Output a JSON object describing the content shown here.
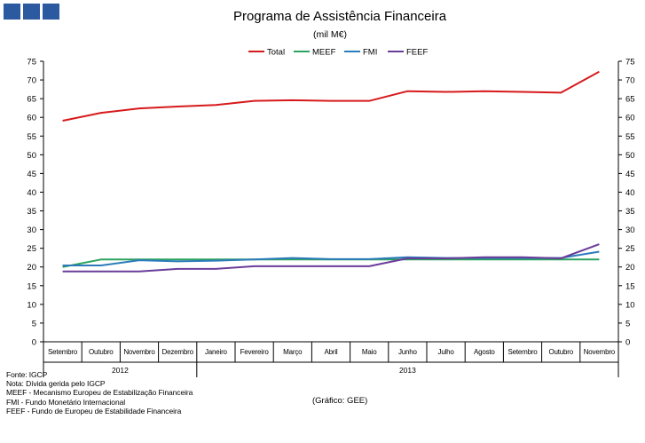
{
  "header": {
    "logo_icon": "three-blue-squares-logo-icon"
  },
  "chart_data": {
    "type": "line",
    "title": "Programa de Assistência Financeira",
    "subtitle": "(mil M€)",
    "categories": [
      "Setembro",
      "Outubro",
      "Novembro",
      "Dezembro",
      "Janeiro",
      "Fevereiro",
      "Março",
      "Abril",
      "Maio",
      "Junho",
      "Julho",
      "Agosto",
      "Setembro",
      "Outubro",
      "Novembro"
    ],
    "years": [
      {
        "label": "2012",
        "from_index": 0,
        "to_index": 3
      },
      {
        "label": "2013",
        "from_index": 4,
        "to_index": 14
      }
    ],
    "ylim": [
      0,
      75
    ],
    "y_ticks": [
      0,
      5,
      10,
      15,
      20,
      25,
      30,
      35,
      40,
      45,
      50,
      55,
      60,
      65,
      70,
      75
    ],
    "grid": false,
    "legend_position": "top-center",
    "series": [
      {
        "name": "Total",
        "color": "#d7191c",
        "values": [
          59.1,
          61.2,
          62.4,
          62.9,
          63.3,
          64.4,
          64.6,
          64.4,
          64.4,
          67.0,
          66.8,
          67.0,
          66.8,
          66.6,
          72.2
        ]
      },
      {
        "name": "MEEF",
        "color": "#2ca25f",
        "values": [
          20.0,
          22.0,
          22.0,
          22.0,
          22.0,
          22.0,
          22.0,
          22.0,
          22.0,
          22.0,
          22.0,
          22.0,
          22.0,
          22.0,
          22.0
        ]
      },
      {
        "name": "FMI",
        "color": "#2b7bba",
        "values": [
          20.4,
          20.4,
          21.8,
          21.5,
          21.7,
          22.0,
          22.4,
          22.1,
          22.1,
          22.6,
          22.4,
          22.4,
          22.4,
          22.4,
          24.1
        ]
      },
      {
        "name": "FEEF",
        "color": "#6a3d9a",
        "values": [
          18.8,
          18.8,
          18.8,
          19.5,
          19.5,
          20.2,
          20.2,
          20.2,
          20.2,
          22.3,
          22.3,
          22.6,
          22.6,
          22.3,
          26.1
        ]
      }
    ]
  },
  "footer": {
    "notes": [
      "Fonte: IGCP",
      "Nota: Dívida gerida pelo IGCP",
      "MEEF - Mecanismo Europeu de Estabilização Financeira",
      "FMI - Fundo Monetário Internacional",
      "FEEF - Fundo de Europeu de Estabilidade Financeira"
    ],
    "credit": "(Gráfico: GEE)"
  }
}
